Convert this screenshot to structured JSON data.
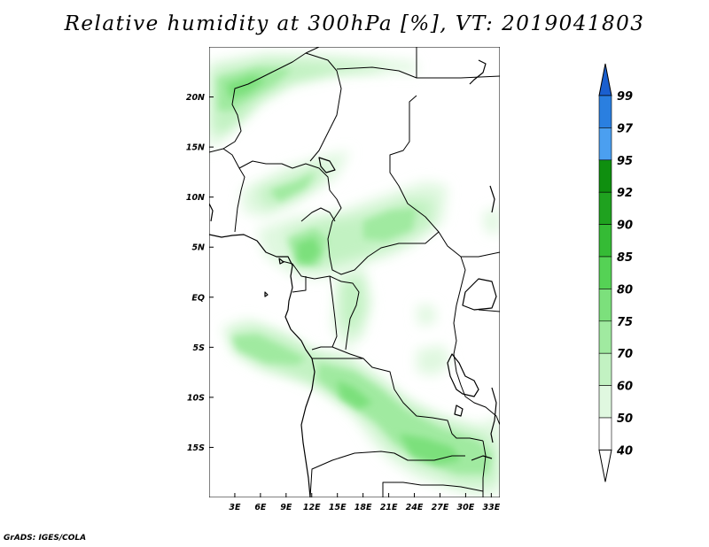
{
  "title": "Relative humidity at 300hPa [%], VT: 2019041803",
  "credit": "GrADS: IGES/COLA",
  "map": {
    "lon_range": [
      0,
      34
    ],
    "lat_range": [
      -20,
      25
    ],
    "lon_ticks": [
      {
        "value": 3,
        "label": "3E"
      },
      {
        "value": 6,
        "label": "6E"
      },
      {
        "value": 9,
        "label": "9E"
      },
      {
        "value": 12,
        "label": "12E"
      },
      {
        "value": 15,
        "label": "15E"
      },
      {
        "value": 18,
        "label": "18E"
      },
      {
        "value": 21,
        "label": "21E"
      },
      {
        "value": 24,
        "label": "24E"
      },
      {
        "value": 27,
        "label": "27E"
      },
      {
        "value": 30,
        "label": "30E"
      },
      {
        "value": 33,
        "label": "33E"
      }
    ],
    "lat_ticks": [
      {
        "value": 20,
        "label": "20N"
      },
      {
        "value": 15,
        "label": "15N"
      },
      {
        "value": 10,
        "label": "10N"
      },
      {
        "value": 5,
        "label": "5N"
      },
      {
        "value": 0,
        "label": "EQ"
      },
      {
        "value": -5,
        "label": "5S"
      },
      {
        "value": -10,
        "label": "10S"
      },
      {
        "value": -15,
        "label": "15S"
      }
    ]
  },
  "colorbar": {
    "levels": [
      {
        "label": "99",
        "color": "#1f6fd8"
      },
      {
        "label": "97",
        "color": "#2a7fe0"
      },
      {
        "label": "95",
        "color": "#4b9ff0"
      },
      {
        "label": "92",
        "color": "#0f8f0f"
      },
      {
        "label": "90",
        "color": "#1fa21f"
      },
      {
        "label": "85",
        "color": "#35bb35"
      },
      {
        "label": "80",
        "color": "#55d255"
      },
      {
        "label": "75",
        "color": "#7ce07c"
      },
      {
        "label": "70",
        "color": "#a0eaa0"
      },
      {
        "label": "60",
        "color": "#c2f2c2"
      },
      {
        "label": "50",
        "color": "#e0f8e0"
      },
      {
        "label": "40",
        "color": "#ffffff"
      }
    ],
    "top_color": "#1a5fcf"
  }
}
